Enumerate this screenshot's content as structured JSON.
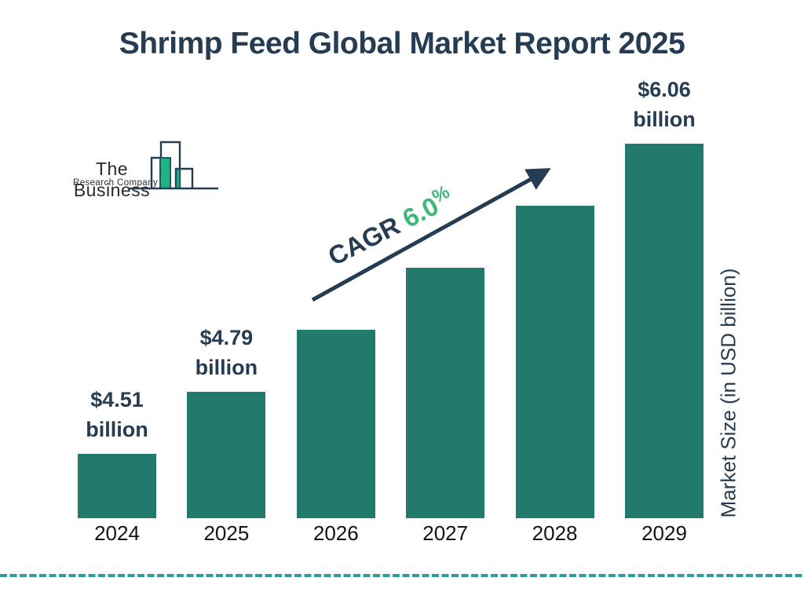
{
  "title": "Shrimp Feed Global Market Report 2025",
  "logo": {
    "line1": "The Business",
    "line2": "Research Company"
  },
  "annotation": {
    "cagr_word": "CAGR",
    "cagr_number": "6.0",
    "percent_sign": "%"
  },
  "ylabel": "Market Size (in USD billion)",
  "colors": {
    "navy": "#253c52",
    "bar_teal": "#217a6c",
    "annotation_green": "#3cb878",
    "logo_green": "#1eb584",
    "dashed_teal": "#2e9d9b"
  },
  "chart_data": {
    "type": "bar",
    "title": "Shrimp Feed Global Market Report 2025",
    "xlabel": "",
    "ylabel": "Market Size (in USD billion)",
    "categories": [
      "2024",
      "2025",
      "2026",
      "2027",
      "2028",
      "2029"
    ],
    "values": [
      4.51,
      4.79,
      5.08,
      5.38,
      5.71,
      6.06
    ],
    "unlabeled_values_estimated_from_cagr": [
      "2026",
      "2027",
      "2028"
    ],
    "value_labels": [
      {
        "line1": "$4.51",
        "line2": "billion"
      },
      {
        "line1": "$4.79",
        "line2": "billion"
      },
      null,
      null,
      null,
      {
        "line1": "$6.06",
        "line2": "billion"
      }
    ],
    "annotation_text": "CAGR 6.0%",
    "grid": false,
    "legend": "none",
    "baseline_not_zero": true
  }
}
